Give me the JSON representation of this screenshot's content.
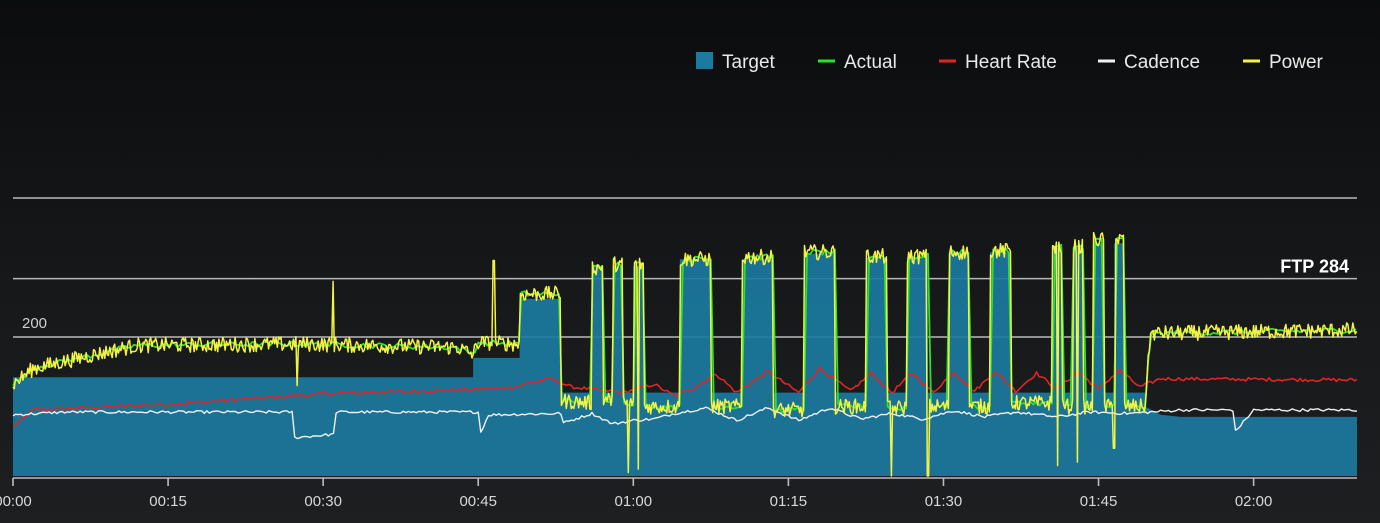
{
  "chart_data": {
    "type": "line",
    "legend_position": "top-right",
    "legend": [
      {
        "name": "Target",
        "color": "#1b7aa0",
        "marker": "square"
      },
      {
        "name": "Actual",
        "color": "#2ee02e",
        "marker": "line"
      },
      {
        "name": "Heart Rate",
        "color": "#e02525",
        "marker": "line"
      },
      {
        "name": "Cadence",
        "color": "#f0f0f0",
        "marker": "line"
      },
      {
        "name": "Power",
        "color": "#f3f346",
        "marker": "line"
      }
    ],
    "x_ticks": [
      "00:00",
      "00:15",
      "00:30",
      "00:45",
      "01:00",
      "01:15",
      "01:30",
      "01:45",
      "02:00"
    ],
    "xlim_minutes": [
      0,
      130
    ],
    "y_scale": {
      "min": 0,
      "max": 400
    },
    "reference_lines": [
      {
        "value": 200,
        "label": "200"
      },
      {
        "value": 284,
        "label": "FTP 284"
      },
      {
        "value": 400,
        "label": ""
      }
    ],
    "target_steps": [
      [
        0,
        142
      ],
      [
        44.5,
        142
      ],
      [
        44.5,
        170
      ],
      [
        49,
        170
      ],
      [
        49,
        255
      ],
      [
        53,
        255
      ],
      [
        53,
        120
      ],
      [
        56,
        120
      ],
      [
        56,
        302
      ],
      [
        57,
        302
      ],
      [
        57,
        120
      ],
      [
        58,
        120
      ],
      [
        58,
        302
      ],
      [
        59,
        302
      ],
      [
        59,
        120
      ],
      [
        60,
        120
      ],
      [
        60,
        302
      ],
      [
        61,
        302
      ],
      [
        61,
        120
      ],
      [
        64.5,
        120
      ],
      [
        64.5,
        312
      ],
      [
        67.5,
        312
      ],
      [
        67.5,
        120
      ],
      [
        70.5,
        120
      ],
      [
        70.5,
        312
      ],
      [
        73.5,
        312
      ],
      [
        73.5,
        120
      ],
      [
        76.5,
        120
      ],
      [
        76.5,
        320
      ],
      [
        79.5,
        320
      ],
      [
        79.5,
        120
      ],
      [
        82.5,
        120
      ],
      [
        82.5,
        314
      ],
      [
        84.5,
        314
      ],
      [
        84.5,
        120
      ],
      [
        86.5,
        120
      ],
      [
        86.5,
        314
      ],
      [
        88.5,
        314
      ],
      [
        88.5,
        120
      ],
      [
        90.5,
        120
      ],
      [
        90.5,
        322
      ],
      [
        92.5,
        322
      ],
      [
        92.5,
        120
      ],
      [
        94.5,
        120
      ],
      [
        94.5,
        322
      ],
      [
        96.5,
        322
      ],
      [
        96.5,
        120
      ],
      [
        100.5,
        120
      ],
      [
        100.5,
        328
      ],
      [
        101.5,
        328
      ],
      [
        101.5,
        120
      ],
      [
        102.5,
        120
      ],
      [
        102.5,
        328
      ],
      [
        103.5,
        328
      ],
      [
        103.5,
        120
      ],
      [
        104.5,
        120
      ],
      [
        104.5,
        335
      ],
      [
        105.5,
        335
      ],
      [
        105.5,
        120
      ],
      [
        106.5,
        120
      ],
      [
        106.5,
        335
      ],
      [
        107.5,
        335
      ],
      [
        107.5,
        120
      ],
      [
        109.5,
        120
      ],
      [
        109.5,
        100
      ],
      [
        111,
        88
      ],
      [
        113,
        85
      ],
      [
        130,
        85
      ]
    ],
    "power_profile": [
      [
        0,
        132
      ],
      [
        2,
        155
      ],
      [
        8,
        175
      ],
      [
        12,
        188
      ],
      [
        28,
        190
      ],
      [
        43,
        185
      ],
      [
        44.5,
        175
      ],
      [
        45,
        192
      ],
      [
        49,
        190
      ],
      [
        49,
        262
      ],
      [
        53,
        262
      ],
      [
        53,
        108
      ],
      [
        56,
        105
      ],
      [
        56,
        300
      ],
      [
        57,
        300
      ],
      [
        57,
        110
      ],
      [
        58,
        110
      ],
      [
        58,
        305
      ],
      [
        59,
        305
      ],
      [
        59,
        105
      ],
      [
        60,
        105
      ],
      [
        60,
        305
      ],
      [
        61,
        305
      ],
      [
        61,
        100
      ],
      [
        64.5,
        100
      ],
      [
        64.5,
        312
      ],
      [
        67.5,
        312
      ],
      [
        67.5,
        100
      ],
      [
        70.5,
        100
      ],
      [
        70.5,
        315
      ],
      [
        73.5,
        315
      ],
      [
        73.5,
        95
      ],
      [
        76.5,
        95
      ],
      [
        76.5,
        322
      ],
      [
        79.5,
        322
      ],
      [
        79.5,
        100
      ],
      [
        82.5,
        100
      ],
      [
        82.5,
        316
      ],
      [
        84.5,
        316
      ],
      [
        84.5,
        98
      ],
      [
        86.5,
        98
      ],
      [
        86.5,
        316
      ],
      [
        88.5,
        316
      ],
      [
        88.5,
        100
      ],
      [
        90.5,
        100
      ],
      [
        90.5,
        322
      ],
      [
        92.5,
        322
      ],
      [
        92.5,
        100
      ],
      [
        94.5,
        100
      ],
      [
        94.5,
        324
      ],
      [
        96.5,
        324
      ],
      [
        96.5,
        105
      ],
      [
        100.5,
        105
      ],
      [
        100.5,
        330
      ],
      [
        101.5,
        330
      ],
      [
        101.5,
        100
      ],
      [
        102.5,
        100
      ],
      [
        102.5,
        330
      ],
      [
        103.5,
        330
      ],
      [
        103.5,
        100
      ],
      [
        104.5,
        100
      ],
      [
        104.5,
        340
      ],
      [
        105.5,
        340
      ],
      [
        105.5,
        100
      ],
      [
        106.5,
        100
      ],
      [
        106.5,
        340
      ],
      [
        107.5,
        340
      ],
      [
        107.5,
        100
      ],
      [
        109.5,
        100
      ],
      [
        110,
        205
      ],
      [
        130,
        210
      ]
    ],
    "heart_rate_profile": [
      [
        0,
        70
      ],
      [
        2,
        95
      ],
      [
        15,
        103
      ],
      [
        30,
        118
      ],
      [
        44,
        124
      ],
      [
        48,
        127
      ],
      [
        52,
        140
      ],
      [
        54,
        128
      ],
      [
        59,
        120
      ],
      [
        62,
        132
      ],
      [
        64,
        115
      ],
      [
        66,
        128
      ],
      [
        68,
        147
      ],
      [
        70,
        120
      ],
      [
        73,
        150
      ],
      [
        76,
        120
      ],
      [
        78,
        155
      ],
      [
        81,
        122
      ],
      [
        83,
        148
      ],
      [
        85,
        120
      ],
      [
        87,
        148
      ],
      [
        89,
        120
      ],
      [
        91,
        150
      ],
      [
        93,
        122
      ],
      [
        95,
        150
      ],
      [
        97,
        122
      ],
      [
        99,
        148
      ],
      [
        101,
        125
      ],
      [
        103,
        150
      ],
      [
        105,
        125
      ],
      [
        107,
        152
      ],
      [
        109,
        128
      ],
      [
        111,
        140
      ],
      [
        130,
        138
      ]
    ],
    "cadence_profile": [
      [
        0,
        88
      ],
      [
        5,
        92
      ],
      [
        27,
        92
      ],
      [
        27,
        55
      ],
      [
        31,
        60
      ],
      [
        31,
        92
      ],
      [
        45,
        92
      ],
      [
        45,
        55
      ],
      [
        46,
        88
      ],
      [
        53,
        90
      ],
      [
        53,
        75
      ],
      [
        56,
        90
      ],
      [
        58,
        75
      ],
      [
        60,
        80
      ],
      [
        62,
        82
      ],
      [
        64,
        90
      ],
      [
        67,
        98
      ],
      [
        70,
        80
      ],
      [
        73,
        98
      ],
      [
        76,
        80
      ],
      [
        79,
        98
      ],
      [
        82,
        82
      ],
      [
        85,
        90
      ],
      [
        88,
        82
      ],
      [
        91,
        94
      ],
      [
        94,
        85
      ],
      [
        97,
        92
      ],
      [
        101,
        85
      ],
      [
        104,
        92
      ],
      [
        108,
        90
      ],
      [
        113,
        95
      ],
      [
        118,
        95
      ],
      [
        118,
        60
      ],
      [
        120,
        95
      ],
      [
        130,
        95
      ]
    ]
  }
}
